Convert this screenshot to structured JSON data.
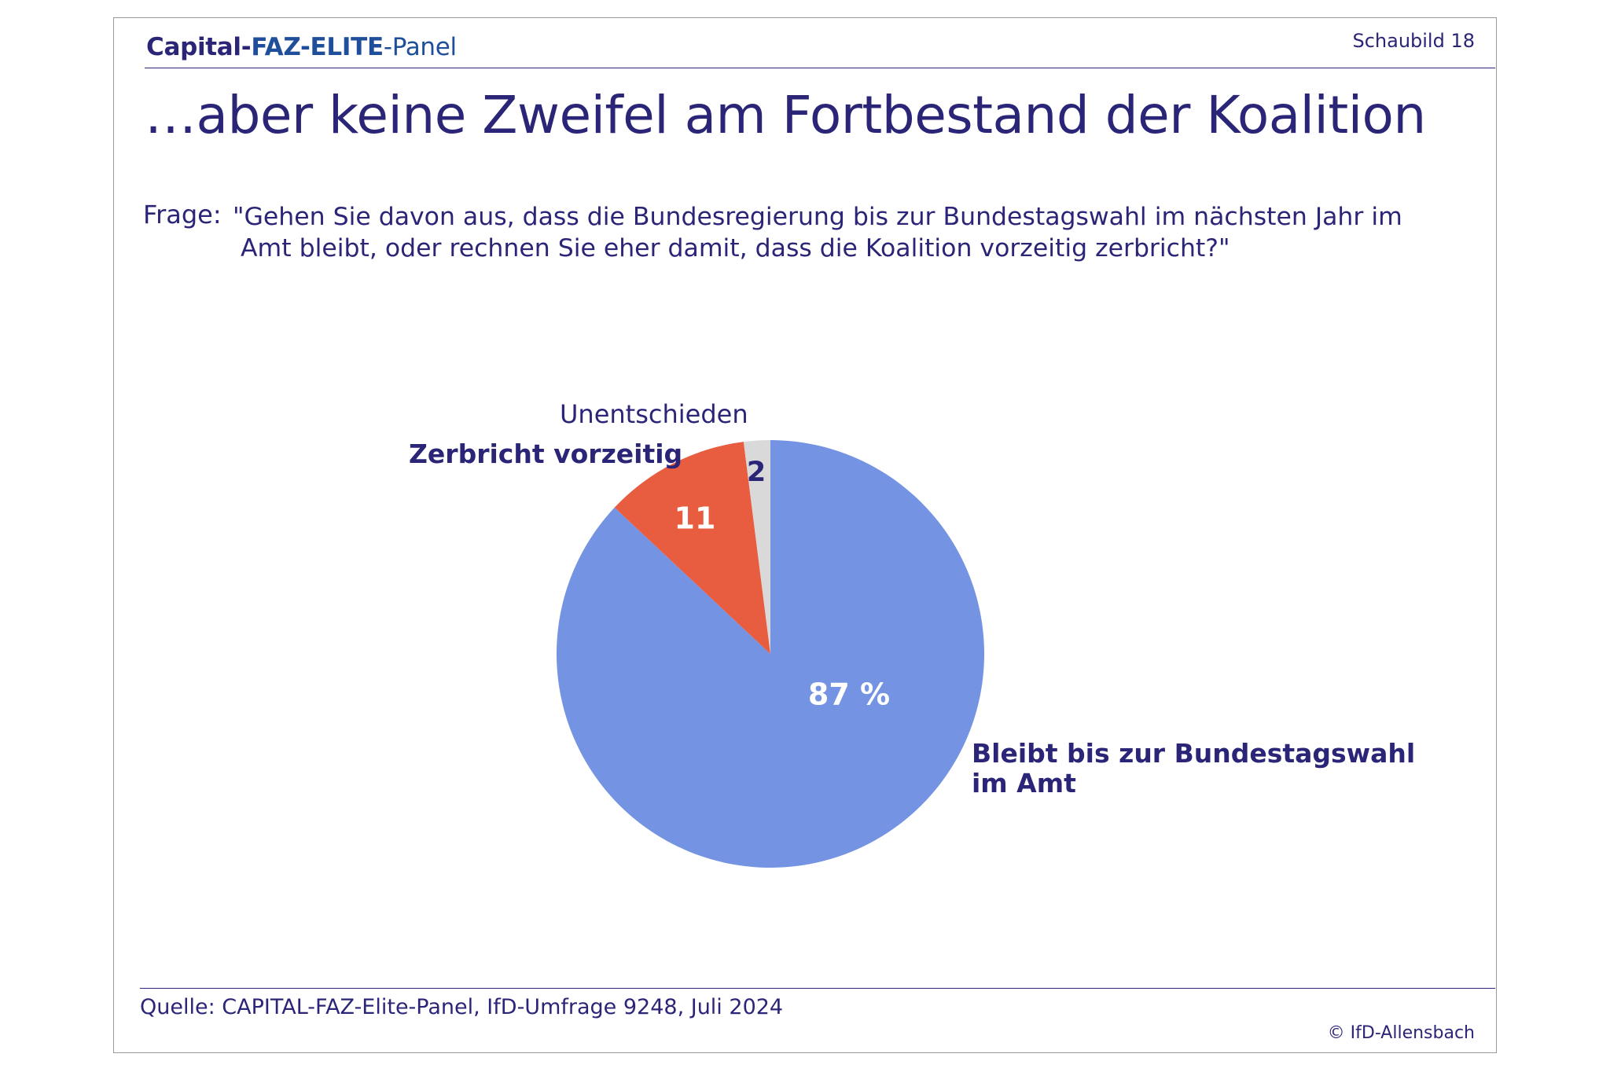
{
  "header": {
    "brand_part1": "Capital-",
    "brand_part2": "FAZ-ELITE",
    "brand_part3": "-Panel",
    "sheet_number": "Schaubild 18"
  },
  "title": "…aber keine Zweifel am Fortbestand der Koalition",
  "question": {
    "label": "Frage:",
    "line1": "\"Gehen Sie davon aus, dass die Bundesregierung bis zur Bundestagswahl im nächsten Jahr im",
    "line2": "Amt bleibt, oder rechnen Sie eher damit, dass die Koalition vorzeitig zerbricht?\""
  },
  "labels": {
    "unentschieden": "Unentschieden",
    "zerbricht": "Zerbricht vorzeitig",
    "bleibt_line1": "Bleibt bis zur Bundestagswahl",
    "bleibt_line2": "im Amt"
  },
  "chart_data": {
    "type": "pie",
    "start": "12 o'clock, clockwise",
    "slices": [
      {
        "label": "Bleibt bis zur Bundestagswahl im Amt",
        "value": 87,
        "value_label": "87 %",
        "color": "#7493e2",
        "label_color": "#ffffff"
      },
      {
        "label": "Zerbricht vorzeitig",
        "value": 11,
        "value_label": "11",
        "color": "#e85c40",
        "label_color": "#ffffff"
      },
      {
        "label": "Unentschieden",
        "value": 2,
        "value_label": "2",
        "color": "#d9d9d9",
        "label_color": "#2b2578"
      }
    ]
  },
  "footer": {
    "source": "Quelle: CAPITAL-FAZ-Elite-Panel, IfD-Umfrage 9248, Juli 2024",
    "copyright": "© IfD-Allensbach"
  }
}
